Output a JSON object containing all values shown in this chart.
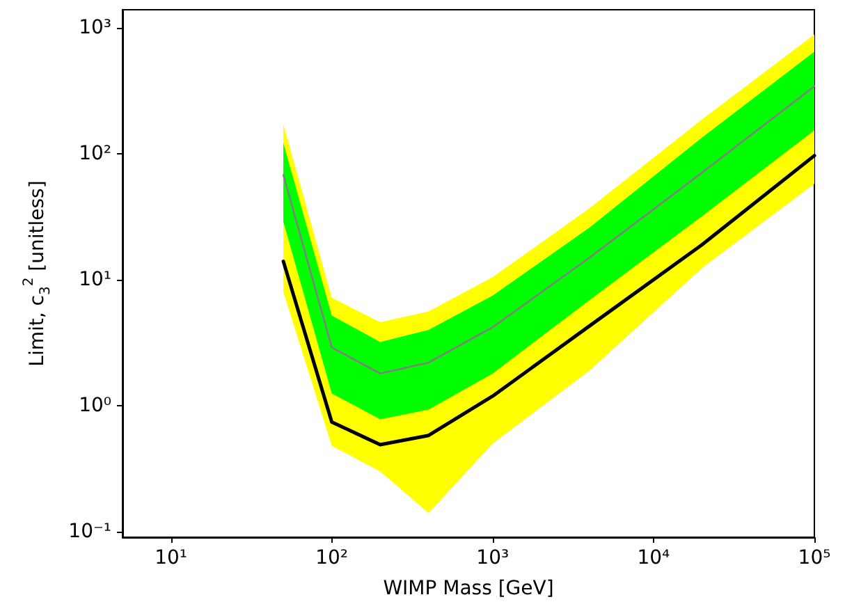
{
  "chart_data": {
    "type": "line",
    "xlabel": "WIMP Mass [GeV]",
    "ylabel": "Limit, c$_{3}$$^{2}$ [unitless]",
    "x": [
      50,
      100,
      200,
      400,
      1000,
      4000,
      20000,
      100000
    ],
    "series": [
      {
        "type": "area",
        "color": "#ffff00",
        "values": [
          null,
          null,
          null,
          null,
          null,
          null,
          null,
          null
        ],
        "lower": [
          8,
          0.48,
          0.3,
          0.14,
          0.5,
          1.9,
          12.4,
          58
        ],
        "upper": [
          172,
          7.2,
          4.6,
          5.6,
          10.5,
          37,
          188,
          890
        ]
      },
      {
        "type": "area",
        "color": "#00ff00",
        "values": [
          null,
          null,
          null,
          null,
          null,
          null,
          null,
          null
        ],
        "lower": [
          29,
          1.25,
          0.78,
          0.93,
          1.8,
          6.9,
          32,
          154
        ],
        "upper": [
          122,
          5.2,
          3.2,
          4.0,
          7.5,
          26,
          135,
          650
        ]
      },
      {
        "color": "#808080",
        "values": [
          68,
          2.9,
          1.8,
          2.2,
          4.2,
          15,
          71,
          345
        ]
      },
      {
        "color": "#000000",
        "values": [
          14,
          0.74,
          0.49,
          0.58,
          1.19,
          4.3,
          19,
          97
        ]
      }
    ],
    "log": "xy",
    "xlim": [
      5,
      100000
    ],
    "ylim": [
      0.09,
      1400
    ],
    "xticks": [
      {
        "value": 10,
        "label": "10¹"
      },
      {
        "value": 100,
        "label": "10²"
      },
      {
        "value": 1000,
        "label": "10³"
      },
      {
        "value": 10000,
        "label": "10⁴"
      },
      {
        "value": 100000,
        "label": "10⁵"
      }
    ],
    "yticks": [
      {
        "value": 0.1,
        "label": "10⁻¹"
      },
      {
        "value": 1,
        "label": "10⁰"
      },
      {
        "value": 10,
        "label": "10¹"
      },
      {
        "value": 100,
        "label": "10²"
      },
      {
        "value": 1000,
        "label": "10³"
      }
    ],
    "grid": false,
    "marker": "none"
  }
}
